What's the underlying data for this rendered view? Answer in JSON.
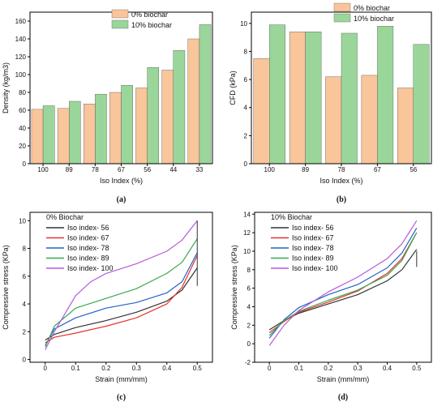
{
  "colors": {
    "bar_0": "#f9c59a",
    "bar_10": "#9ad69a",
    "s56": "#333333",
    "s67": "#e8312a",
    "s78": "#2461c9",
    "s89": "#3aa84e",
    "s100": "#b55ad9"
  },
  "chart_data": [
    {
      "id": "a",
      "type": "bar",
      "caption": "(a)",
      "xlabel": "Iso Index (%)",
      "ylabel": "Density (kg/m3)",
      "ylim": [
        0,
        170
      ],
      "yticks": [
        0,
        20,
        40,
        60,
        80,
        100,
        120,
        140,
        160
      ],
      "categories": [
        "100",
        "89",
        "78",
        "67",
        "56",
        "44",
        "33"
      ],
      "legend_position": "top-center",
      "series": [
        {
          "name": "0% biochar",
          "values": [
            61,
            62,
            67,
            80,
            85,
            105,
            140
          ]
        },
        {
          "name": "10% biochar",
          "values": [
            65,
            70,
            78,
            88,
            108,
            127,
            156
          ]
        }
      ]
    },
    {
      "id": "b",
      "type": "bar",
      "caption": "(b)",
      "xlabel": "Iso Index (%)",
      "ylabel": "CFD (kPa)",
      "ylim": [
        0,
        10.8
      ],
      "yticks": [
        0,
        2,
        4,
        6,
        8,
        10
      ],
      "categories": [
        "100",
        "89",
        "78",
        "67",
        "56"
      ],
      "legend_position": "top-center",
      "series": [
        {
          "name": "0% biochar",
          "values": [
            7.5,
            9.4,
            6.2,
            6.3,
            5.4
          ]
        },
        {
          "name": "10% biochar",
          "values": [
            9.9,
            9.4,
            9.3,
            9.8,
            8.5
          ]
        }
      ]
    },
    {
      "id": "c",
      "type": "line",
      "caption": "(c)",
      "title": "0% Biochar",
      "xlabel": "Strain (mm/mm)",
      "ylabel": "Compressive stress (KPa)",
      "xlim": [
        -0.05,
        0.55
      ],
      "ylim": [
        -0.2,
        10.6
      ],
      "xticks": [
        0.0,
        0.1,
        0.2,
        0.3,
        0.4,
        0.5
      ],
      "yticks": [
        0,
        2,
        4,
        6,
        8,
        10
      ],
      "legend_position": "top-left",
      "series": [
        {
          "name": "Iso index- 56",
          "x": [
            0,
            0.03,
            0.1,
            0.2,
            0.3,
            0.4,
            0.45,
            0.5
          ],
          "y": [
            1.4,
            1.8,
            2.3,
            2.8,
            3.4,
            4.2,
            5.0,
            6.6
          ]
        },
        {
          "name": "Iso index- 67",
          "x": [
            0,
            0.03,
            0.1,
            0.2,
            0.3,
            0.4,
            0.45,
            0.5
          ],
          "y": [
            1.2,
            1.6,
            1.9,
            2.4,
            3.0,
            4.0,
            5.2,
            7.5
          ]
        },
        {
          "name": "Iso index- 78",
          "x": [
            0,
            0.03,
            0.1,
            0.2,
            0.3,
            0.4,
            0.45,
            0.5
          ],
          "y": [
            1.0,
            2.2,
            3.0,
            3.7,
            4.1,
            4.8,
            5.6,
            7.7
          ]
        },
        {
          "name": "Iso index- 89",
          "x": [
            0,
            0.03,
            0.1,
            0.2,
            0.3,
            0.4,
            0.45,
            0.5
          ],
          "y": [
            0.9,
            2.4,
            3.7,
            4.4,
            5.1,
            6.2,
            7.0,
            8.7
          ]
        },
        {
          "name": "Iso index- 100",
          "x": [
            0,
            0.03,
            0.1,
            0.15,
            0.2,
            0.3,
            0.4,
            0.45,
            0.5
          ],
          "y": [
            0.7,
            2.0,
            4.6,
            5.6,
            6.2,
            6.9,
            7.8,
            8.6,
            10.0
          ]
        }
      ]
    },
    {
      "id": "d",
      "type": "line",
      "caption": "(d)",
      "title": "10% Biochar",
      "xlabel": "Strain (mm/mm)",
      "ylabel": "Compressive stress (KPa)",
      "xlim": [
        -0.05,
        0.55
      ],
      "ylim": [
        -2,
        14.2
      ],
      "xticks": [
        0.0,
        0.1,
        0.2,
        0.3,
        0.4,
        0.5
      ],
      "yticks": [
        -2,
        0,
        2,
        4,
        6,
        8,
        10,
        12,
        14
      ],
      "legend_position": "top-left",
      "series": [
        {
          "name": "Iso index- 56",
          "x": [
            0,
            0.05,
            0.1,
            0.2,
            0.3,
            0.4,
            0.45,
            0.5
          ],
          "y": [
            1.5,
            2.5,
            3.3,
            4.3,
            5.3,
            6.8,
            8.0,
            10.2
          ]
        },
        {
          "name": "Iso index- 67",
          "x": [
            0,
            0.05,
            0.1,
            0.2,
            0.3,
            0.4,
            0.45,
            0.5
          ],
          "y": [
            1.2,
            2.4,
            3.4,
            4.5,
            5.7,
            7.6,
            9.2,
            12.0
          ]
        },
        {
          "name": "Iso index- 78",
          "x": [
            0,
            0.05,
            0.1,
            0.2,
            0.3,
            0.4,
            0.45,
            0.5
          ],
          "y": [
            0.6,
            2.6,
            3.9,
            5.3,
            6.4,
            8.2,
            9.8,
            12.5
          ]
        },
        {
          "name": "Iso index- 89",
          "x": [
            0,
            0.05,
            0.1,
            0.2,
            0.3,
            0.4,
            0.45,
            0.5
          ],
          "y": [
            0.9,
            2.5,
            3.5,
            4.7,
            5.8,
            7.4,
            9.0,
            12.0
          ]
        },
        {
          "name": "Iso index- 100",
          "x": [
            0,
            0.05,
            0.1,
            0.2,
            0.3,
            0.4,
            0.45,
            0.5
          ],
          "y": [
            -0.2,
            2.0,
            3.6,
            5.6,
            7.2,
            9.2,
            10.8,
            13.3
          ]
        }
      ]
    }
  ]
}
